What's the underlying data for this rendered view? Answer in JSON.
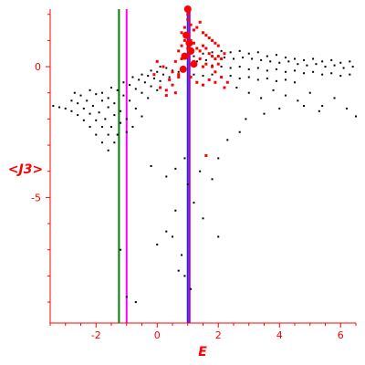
{
  "chart_data": {
    "type": "scatter",
    "xlabel": "E",
    "ylabel": "<J3>",
    "xlim": [
      -3.5,
      6.5
    ],
    "ylim": [
      -9.8,
      2.2
    ],
    "x_ticks": [
      -2,
      0,
      2,
      4,
      6
    ],
    "x_tick_labels": [
      "-2",
      "0",
      "2",
      "4",
      "6"
    ],
    "y_ticks": [
      0,
      -5
    ],
    "y_tick_labels": [
      "0",
      "-5"
    ],
    "grid": false,
    "colors": {
      "axis": "#ff0000",
      "points": "#000000",
      "highlight": "#ff0000",
      "line_green": "#008000",
      "line_magenta": "#ff00ff",
      "line_blue": "#2222ff",
      "line_purple": "#aa00cc"
    },
    "vertical_lines": [
      {
        "x": -1.25,
        "color": "#008000"
      },
      {
        "x": -1.0,
        "color": "#ff00ff"
      },
      {
        "x": 1.0,
        "color": "#2222ff"
      },
      {
        "x": 1.06,
        "color": "#aa00cc"
      }
    ],
    "series": [
      {
        "marker": "black-dot",
        "points": [
          [
            -3.4,
            -1.5
          ],
          [
            -3.2,
            -1.55
          ],
          [
            -3.0,
            -1.6
          ],
          [
            -2.8,
            -1.7
          ],
          [
            -2.6,
            -1.85
          ],
          [
            -2.4,
            -2.05
          ],
          [
            -2.2,
            -2.3
          ],
          [
            -2.0,
            -2.6
          ],
          [
            -1.8,
            -2.9
          ],
          [
            -1.6,
            -3.2
          ],
          [
            -2.8,
            -1.3
          ],
          [
            -2.6,
            -1.4
          ],
          [
            -2.4,
            -1.6
          ],
          [
            -2.2,
            -1.8
          ],
          [
            -2.0,
            -2.05
          ],
          [
            -1.8,
            -2.3
          ],
          [
            -1.6,
            -2.6
          ],
          [
            -1.4,
            -2.9
          ],
          [
            -2.7,
            -1.0
          ],
          [
            -2.5,
            -1.1
          ],
          [
            -2.3,
            -1.3
          ],
          [
            -2.1,
            -1.5
          ],
          [
            -1.9,
            -1.75
          ],
          [
            -1.7,
            -2.0
          ],
          [
            -1.5,
            -2.3
          ],
          [
            -1.3,
            -2.6
          ],
          [
            -2.2,
            -0.9
          ],
          [
            -2.0,
            -1.05
          ],
          [
            -1.8,
            -1.3
          ],
          [
            -1.6,
            -1.55
          ],
          [
            -1.4,
            -1.85
          ],
          [
            -1.2,
            -2.15
          ],
          [
            -1.0,
            -2.5
          ],
          [
            -1.8,
            -1.0
          ],
          [
            -1.6,
            -1.2
          ],
          [
            -1.4,
            -1.4
          ],
          [
            -1.2,
            -1.7
          ],
          [
            -1.0,
            -2.0
          ],
          [
            -0.8,
            -2.3
          ],
          [
            -1.5,
            -0.8
          ],
          [
            -1.3,
            -0.9
          ],
          [
            -1.1,
            -1.1
          ],
          [
            -0.9,
            -1.3
          ],
          [
            -0.7,
            -1.6
          ],
          [
            -0.5,
            -1.9
          ],
          [
            -1.1,
            -0.6
          ],
          [
            -0.9,
            -0.7
          ],
          [
            -0.7,
            -0.85
          ],
          [
            -0.5,
            -1.0
          ],
          [
            -0.3,
            -1.2
          ],
          [
            -0.8,
            -0.4
          ],
          [
            -0.6,
            -0.5
          ],
          [
            -0.4,
            -0.6
          ],
          [
            -0.2,
            -0.75
          ],
          [
            0.0,
            -0.9
          ],
          [
            -0.5,
            -0.3
          ],
          [
            -0.3,
            -0.35
          ],
          [
            -0.1,
            -0.45
          ],
          [
            0.1,
            -0.55
          ],
          [
            -0.2,
            -0.15
          ],
          [
            0.0,
            -0.2
          ],
          [
            0.2,
            -0.3
          ],
          [
            0.4,
            -0.4
          ],
          [
            0.1,
            0.0
          ],
          [
            0.3,
            -0.05
          ],
          [
            0.5,
            -0.15
          ],
          [
            0.7,
            -0.2
          ],
          [
            1.2,
            0.4
          ],
          [
            1.5,
            0.5
          ],
          [
            1.8,
            0.55
          ],
          [
            2.1,
            0.6
          ],
          [
            2.4,
            0.55
          ],
          [
            2.7,
            0.6
          ],
          [
            3.0,
            0.5
          ],
          [
            3.3,
            0.55
          ],
          [
            3.6,
            0.4
          ],
          [
            3.9,
            0.45
          ],
          [
            4.2,
            0.35
          ],
          [
            4.5,
            0.3
          ],
          [
            4.8,
            0.25
          ],
          [
            5.1,
            0.3
          ],
          [
            5.4,
            0.2
          ],
          [
            5.7,
            0.25
          ],
          [
            6.0,
            0.15
          ],
          [
            6.3,
            0.2
          ],
          [
            1.3,
            0.2
          ],
          [
            1.6,
            0.25
          ],
          [
            1.9,
            0.3
          ],
          [
            2.2,
            0.35
          ],
          [
            2.5,
            0.3
          ],
          [
            2.8,
            0.35
          ],
          [
            3.1,
            0.3
          ],
          [
            3.4,
            0.25
          ],
          [
            3.7,
            0.2
          ],
          [
            4.0,
            0.15
          ],
          [
            4.3,
            0.2
          ],
          [
            4.6,
            0.1
          ],
          [
            4.9,
            0.05
          ],
          [
            5.2,
            0.1
          ],
          [
            5.5,
            0.0
          ],
          [
            5.8,
            0.05
          ],
          [
            6.1,
            -0.05
          ],
          [
            6.4,
            0.0
          ],
          [
            1.2,
            0.05
          ],
          [
            1.5,
            0.0
          ],
          [
            1.8,
            0.05
          ],
          [
            2.1,
            0.0
          ],
          [
            2.4,
            -0.05
          ],
          [
            2.7,
            0.0
          ],
          [
            3.0,
            -0.1
          ],
          [
            3.3,
            -0.05
          ],
          [
            3.6,
            -0.15
          ],
          [
            3.9,
            -0.1
          ],
          [
            4.2,
            -0.2
          ],
          [
            4.5,
            -0.15
          ],
          [
            4.8,
            -0.25
          ],
          [
            5.1,
            -0.2
          ],
          [
            5.4,
            -0.3
          ],
          [
            5.7,
            -0.25
          ],
          [
            6.0,
            -0.35
          ],
          [
            6.3,
            -0.3
          ],
          [
            1.2,
            -0.3
          ],
          [
            1.5,
            -0.35
          ],
          [
            1.8,
            -0.3
          ],
          [
            2.1,
            -0.4
          ],
          [
            2.4,
            -0.35
          ],
          [
            2.7,
            -0.45
          ],
          [
            3.0,
            -0.4
          ],
          [
            3.3,
            -0.5
          ],
          [
            3.6,
            -0.45
          ],
          [
            3.9,
            -0.55
          ],
          [
            4.2,
            -0.5
          ],
          [
            4.5,
            -0.6
          ],
          [
            2.6,
            -0.8
          ],
          [
            3.0,
            -1.0
          ],
          [
            3.4,
            -1.2
          ],
          [
            3.8,
            -0.9
          ],
          [
            4.2,
            -1.1
          ],
          [
            4.6,
            -1.3
          ],
          [
            5.0,
            -1.0
          ],
          [
            5.4,
            -1.5
          ],
          [
            5.8,
            -1.2
          ],
          [
            6.2,
            -1.6
          ],
          [
            6.5,
            -1.9
          ],
          [
            5.3,
            -1.7
          ],
          [
            4.8,
            -1.5
          ],
          [
            4.0,
            -1.6
          ],
          [
            3.5,
            -1.8
          ],
          [
            2.9,
            -2.0
          ],
          [
            -1.2,
            -7.0
          ],
          [
            -1.0,
            -8.8
          ],
          [
            -0.7,
            -9.0
          ],
          [
            0.0,
            -6.8
          ],
          [
            0.3,
            -6.3
          ],
          [
            0.5,
            -6.5
          ],
          [
            0.8,
            -7.2
          ],
          [
            0.7,
            -7.8
          ],
          [
            0.9,
            -8.0
          ],
          [
            1.1,
            -8.5
          ],
          [
            0.6,
            -5.5
          ],
          [
            0.3,
            -4.2
          ],
          [
            0.6,
            -3.9
          ],
          [
            0.9,
            -3.5
          ],
          [
            1.4,
            -4.0
          ],
          [
            1.8,
            -4.3
          ],
          [
            2.0,
            -3.5
          ],
          [
            2.3,
            -2.8
          ],
          [
            1.0,
            -4.5
          ],
          [
            1.5,
            -5.8
          ],
          [
            2.0,
            -6.5
          ],
          [
            1.2,
            -5.2
          ],
          [
            2.7,
            -2.5
          ],
          [
            -0.2,
            -3.8
          ]
        ]
      },
      {
        "marker": "red-dot",
        "points": [
          [
            0.8,
            1.3
          ],
          [
            0.9,
            1.5
          ],
          [
            1.0,
            1.8
          ],
          [
            1.0,
            2.0
          ],
          [
            1.1,
            1.6
          ],
          [
            1.2,
            1.4
          ],
          [
            1.3,
            1.5
          ],
          [
            1.4,
            1.7
          ],
          [
            1.5,
            1.3
          ],
          [
            1.6,
            1.2
          ],
          [
            1.7,
            1.1
          ],
          [
            1.8,
            1.0
          ],
          [
            1.9,
            0.9
          ],
          [
            2.0,
            0.8
          ],
          [
            0.7,
            0.6
          ],
          [
            0.8,
            0.8
          ],
          [
            0.9,
            1.0
          ],
          [
            1.0,
            0.7
          ],
          [
            1.1,
            1.0
          ],
          [
            1.2,
            0.9
          ],
          [
            1.3,
            0.7
          ],
          [
            1.4,
            0.6
          ],
          [
            1.5,
            0.8
          ],
          [
            1.6,
            0.7
          ],
          [
            1.7,
            0.5
          ],
          [
            1.8,
            0.4
          ],
          [
            1.9,
            0.3
          ],
          [
            2.0,
            0.4
          ],
          [
            2.1,
            0.3
          ],
          [
            2.2,
            0.5
          ],
          [
            0.6,
            0.2
          ],
          [
            0.8,
            0.3
          ],
          [
            1.0,
            0.4
          ],
          [
            1.2,
            0.2
          ],
          [
            1.4,
            0.3
          ],
          [
            1.6,
            0.1
          ],
          [
            1.8,
            0.0
          ],
          [
            2.0,
            0.1
          ],
          [
            0.5,
            -0.2
          ],
          [
            0.7,
            -0.3
          ],
          [
            0.9,
            -0.1
          ],
          [
            1.1,
            -0.4
          ],
          [
            1.3,
            -0.6
          ],
          [
            1.5,
            -0.7
          ],
          [
            1.7,
            -0.5
          ],
          [
            1.9,
            -0.6
          ],
          [
            2.1,
            -0.4
          ],
          [
            2.3,
            -0.6
          ],
          [
            0.1,
            -0.8
          ],
          [
            0.3,
            -0.9
          ],
          [
            0.5,
            -0.7
          ],
          [
            0.7,
            -0.4
          ],
          [
            0.4,
            -0.5
          ],
          [
            0.0,
            0.2
          ],
          [
            0.2,
            0.0
          ],
          [
            -0.1,
            -0.3
          ],
          [
            0.3,
            -1.1
          ],
          [
            0.6,
            -1.0
          ],
          [
            1.6,
            -3.4
          ],
          [
            2.2,
            -0.8
          ],
          [
            1.5,
            0.0
          ],
          [
            1.9,
            -0.2
          ]
        ]
      },
      {
        "marker": "red-big",
        "points": [
          [
            1.0,
            2.2
          ],
          [
            0.95,
            1.2
          ],
          [
            1.05,
            0.9
          ],
          [
            1.1,
            0.6
          ],
          [
            0.9,
            0.4
          ],
          [
            1.2,
            0.1
          ],
          [
            0.85,
            -0.1
          ]
        ]
      }
    ]
  }
}
